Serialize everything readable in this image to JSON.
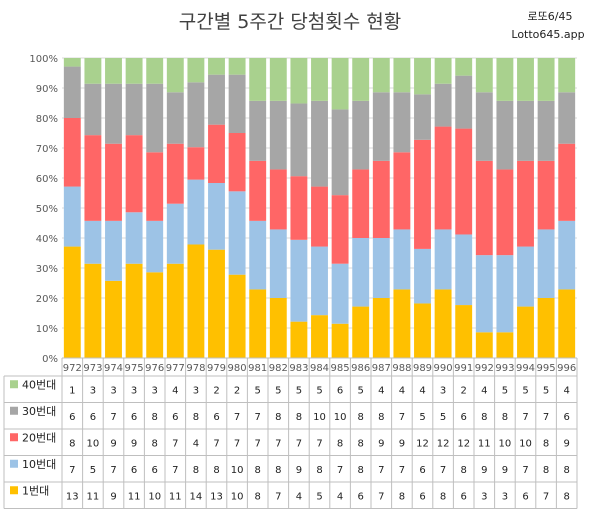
{
  "brand": {
    "line1": "로또6/45",
    "line2": "Lotto645.app"
  },
  "chart_data": {
    "type": "bar",
    "stacked": "percent",
    "title": "구간별 5주간 당첨횟수 현황",
    "categories": [
      "972",
      "973",
      "974",
      "975",
      "976",
      "977",
      "978",
      "979",
      "980",
      "981",
      "982",
      "983",
      "984",
      "985",
      "986",
      "987",
      "988",
      "989",
      "990",
      "991",
      "992",
      "993",
      "994",
      "995",
      "996"
    ],
    "series": [
      {
        "name": "1번대",
        "color": "#ffc000",
        "values": [
          13,
          11,
          9,
          11,
          10,
          11,
          14,
          13,
          10,
          8,
          7,
          4,
          5,
          4,
          6,
          7,
          8,
          6,
          8,
          6,
          3,
          3,
          6,
          7,
          8
        ]
      },
      {
        "name": "10번대",
        "color": "#9dc3e6",
        "values": [
          7,
          5,
          7,
          6,
          6,
          7,
          8,
          8,
          10,
          8,
          8,
          9,
          8,
          7,
          8,
          7,
          7,
          6,
          7,
          8,
          9,
          9,
          7,
          8,
          8
        ]
      },
      {
        "name": "20번대",
        "color": "#ff6666",
        "values": [
          8,
          10,
          9,
          9,
          8,
          7,
          4,
          7,
          7,
          7,
          7,
          7,
          7,
          8,
          8,
          9,
          9,
          12,
          12,
          12,
          11,
          10,
          10,
          8,
          9
        ]
      },
      {
        "name": "30번대",
        "color": "#a6a6a6",
        "values": [
          6,
          6,
          7,
          6,
          8,
          6,
          8,
          6,
          7,
          7,
          8,
          8,
          10,
          10,
          8,
          8,
          7,
          5,
          5,
          6,
          8,
          8,
          7,
          7,
          6
        ]
      },
      {
        "name": "40번대",
        "color": "#a9d18e",
        "values": [
          1,
          3,
          3,
          3,
          3,
          4,
          3,
          2,
          2,
          5,
          5,
          5,
          5,
          6,
          5,
          4,
          4,
          4,
          3,
          2,
          4,
          5,
          5,
          5,
          4
        ]
      }
    ],
    "legend_order": [
      4,
      3,
      2,
      1,
      0
    ],
    "yticks": [
      "0%",
      "10%",
      "20%",
      "30%",
      "40%",
      "50%",
      "60%",
      "70%",
      "80%",
      "90%",
      "100%"
    ],
    "ylim": [
      0,
      100
    ],
    "grid": true,
    "data_table": true
  }
}
